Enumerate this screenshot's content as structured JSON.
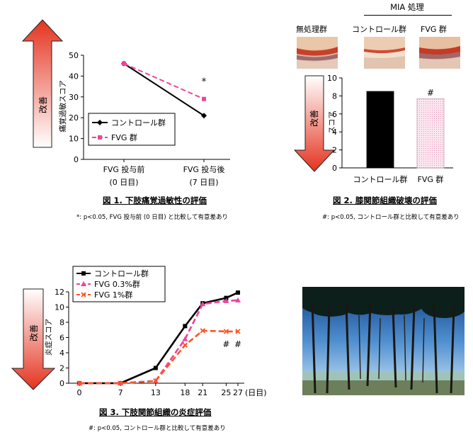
{
  "improve_label": "改善",
  "chart_data": [
    {
      "type": "line",
      "caption": "図 1. 下肢痛覚過敏性の評価",
      "note": "*: p<0.05, FVG 投与前 (0 日目) と比較して有意差あり",
      "ylabel": "痛覚過敏スコア",
      "ylim": [
        0,
        50
      ],
      "yticks": [
        "0",
        "10",
        "20",
        "30",
        "40",
        "50"
      ],
      "categories": [
        {
          "line1": "FVG 投与前",
          "line2": "(0 日目)"
        },
        {
          "line1": "FVG 投与後",
          "line2": "(7 日目)"
        }
      ],
      "series": [
        {
          "name": "コントロール群",
          "values": [
            46,
            21
          ],
          "color": "#000000",
          "marker": "diamond",
          "dashed": false
        },
        {
          "name": "FVG 群",
          "values": [
            46,
            29
          ],
          "color": "#ee4499",
          "marker": "square",
          "dashed": true
        }
      ],
      "annotations": [
        {
          "text": "*",
          "series": 1,
          "point": 1
        }
      ],
      "legend": "center-left"
    },
    {
      "type": "bar",
      "caption": "図 2. 膝関節組織破壊の評価",
      "note": "#: p<0.05, コントロール群と比較して有意差あり",
      "ylabel": "スコア",
      "ylim": [
        0,
        10
      ],
      "yticks": [
        "0",
        "2",
        "4",
        "6",
        "8",
        "10"
      ],
      "categories": [
        "コントロール群",
        "FVG 群"
      ],
      "values": [
        8.5,
        7.7
      ],
      "colors": [
        "#000000",
        "#f8d6e6"
      ],
      "annotations": [
        {
          "text": "#",
          "bar": 1
        }
      ],
      "image_header": {
        "group_title": "MIA 処理",
        "labels": [
          "無処理群",
          "コントロール群",
          "FVG 群"
        ]
      }
    },
    {
      "type": "line",
      "caption": "図 3. 下肢関節組織の炎症評価",
      "note": "#: p<0.05, コントロール群と比較して有意差あり",
      "ylabel": "炎症スコア",
      "ylim": [
        0,
        12
      ],
      "yticks": [
        "0",
        "2",
        "4",
        "6",
        "8",
        "10",
        "12"
      ],
      "x": [
        0,
        7,
        13,
        18,
        21,
        25,
        27
      ],
      "xticks": [
        "0",
        "7",
        "13",
        "18",
        "21",
        "25",
        "27"
      ],
      "xunit": "(日目)",
      "series": [
        {
          "name": "コントロール群",
          "values": [
            0,
            0,
            2,
            7.5,
            10.5,
            11.2,
            11.9
          ],
          "color": "#000000",
          "marker": "square",
          "dashed": false
        },
        {
          "name": "FVG 0.3%群",
          "values": [
            0,
            0,
            0.3,
            5.8,
            10.4,
            10.8,
            10.9
          ],
          "color": "#ee4499",
          "marker": "triangle",
          "dashed": true
        },
        {
          "name": "FVG 1%群",
          "values": [
            0,
            0,
            0.3,
            5.0,
            6.9,
            6.8,
            6.8
          ],
          "color": "#ff5522",
          "marker": "cross",
          "dashed": true
        }
      ],
      "annotations": [
        {
          "text": "#",
          "series": 2,
          "point": 5
        },
        {
          "text": "#",
          "series": 2,
          "point": 6
        }
      ],
      "legend": "top-left"
    }
  ]
}
